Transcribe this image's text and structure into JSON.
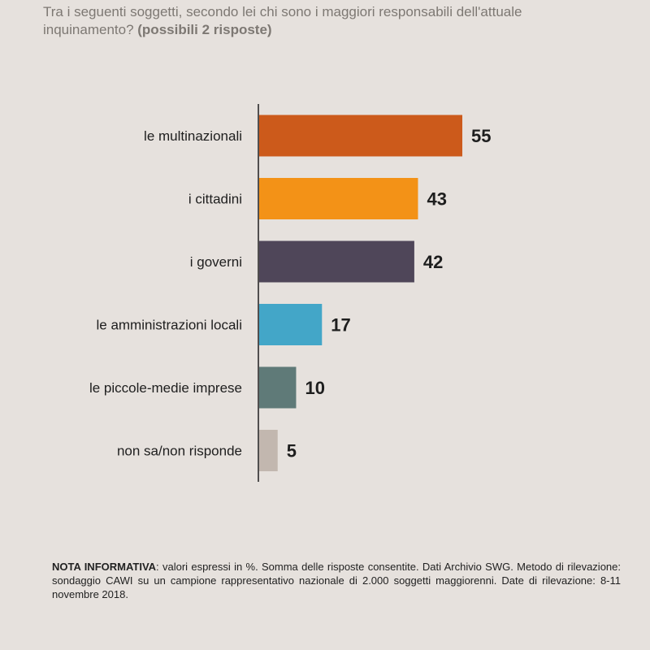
{
  "question": {
    "text": "Tra i seguenti soggetti, secondo lei chi sono i maggiori responsabili dell'attuale inquinamento?",
    "emphasis": "(possibili 2 risposte)"
  },
  "chart_data": {
    "type": "bar",
    "orientation": "horizontal",
    "categories": [
      "le multinazionali",
      "i cittadini",
      "i governi",
      "le amministrazioni locali",
      "le piccole-medie imprese",
      "non sa/non risponde"
    ],
    "values": [
      55,
      43,
      42,
      17,
      10,
      5
    ],
    "value_labels": [
      "55",
      "43",
      "42",
      "17",
      "10",
      "5"
    ],
    "colors": [
      "#cc5a1b",
      "#f39217",
      "#4f4659",
      "#43a6c8",
      "#5f7a78",
      "#c2b7af"
    ],
    "xlim": [
      0,
      60
    ],
    "grid": false,
    "legend": "none"
  },
  "note": {
    "label": "NOTA INFORMATIVA",
    "text": ": valori espressi in %. Somma delle risposte consentite. Dati Archivio SWG. Metodo di rilevazione: sondaggio CAWI su un campione rappresentativo nazionale di 2.000 soggetti maggiorenni. Date di rilevazione: 8-11 novembre 2018."
  }
}
